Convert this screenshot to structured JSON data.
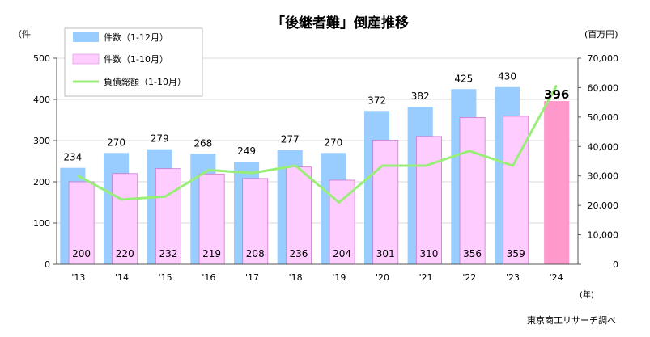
{
  "chart_data": {
    "type": "bar",
    "title": "「後継者難」倒産推移",
    "y_unit_left": "（件",
    "y_unit_right": "(百万円)",
    "x_unit": "(年)",
    "source": "東京商工リサーチ調べ",
    "categories": [
      "'13",
      "'14",
      "'15",
      "'16",
      "'17",
      "'18",
      "'19",
      "'20",
      "'21",
      "'22",
      "'23",
      "'24"
    ],
    "ylim_left": [
      0,
      500
    ],
    "yticks_left": [
      "0",
      "100",
      "200",
      "300",
      "400",
      "500"
    ],
    "ylim_right": [
      0,
      70000
    ],
    "yticks_right": [
      "0",
      "10,000",
      "20,000",
      "30,000",
      "40,000",
      "50,000",
      "60,000",
      "70,000"
    ],
    "legend_position": "top-left",
    "series": [
      {
        "name": "件数（1-12月）",
        "kind": "bar",
        "axis": "left",
        "color": "#99CCFF",
        "values": [
          234,
          270,
          279,
          268,
          249,
          277,
          270,
          372,
          382,
          425,
          430,
          null
        ],
        "labels": [
          "234",
          "270",
          "279",
          "268",
          "249",
          "277",
          "270",
          "372",
          "382",
          "425",
          "430",
          ""
        ]
      },
      {
        "name": "件数（1-10月）",
        "kind": "bar",
        "axis": "left",
        "color": "#FFCCFF",
        "highlight_color": "#FF99CC",
        "values": [
          200,
          220,
          232,
          219,
          208,
          236,
          204,
          301,
          310,
          356,
          359,
          396
        ],
        "labels": [
          "200",
          "220",
          "232",
          "219",
          "208",
          "236",
          "204",
          "301",
          "310",
          "356",
          "359",
          "396"
        ]
      },
      {
        "name": "負債総額（1-10月）",
        "kind": "line",
        "axis": "right",
        "color": "#99EE77",
        "values": [
          30000,
          22000,
          23000,
          32000,
          31000,
          33500,
          21000,
          33500,
          33500,
          38500,
          33500,
          60500
        ]
      }
    ]
  }
}
